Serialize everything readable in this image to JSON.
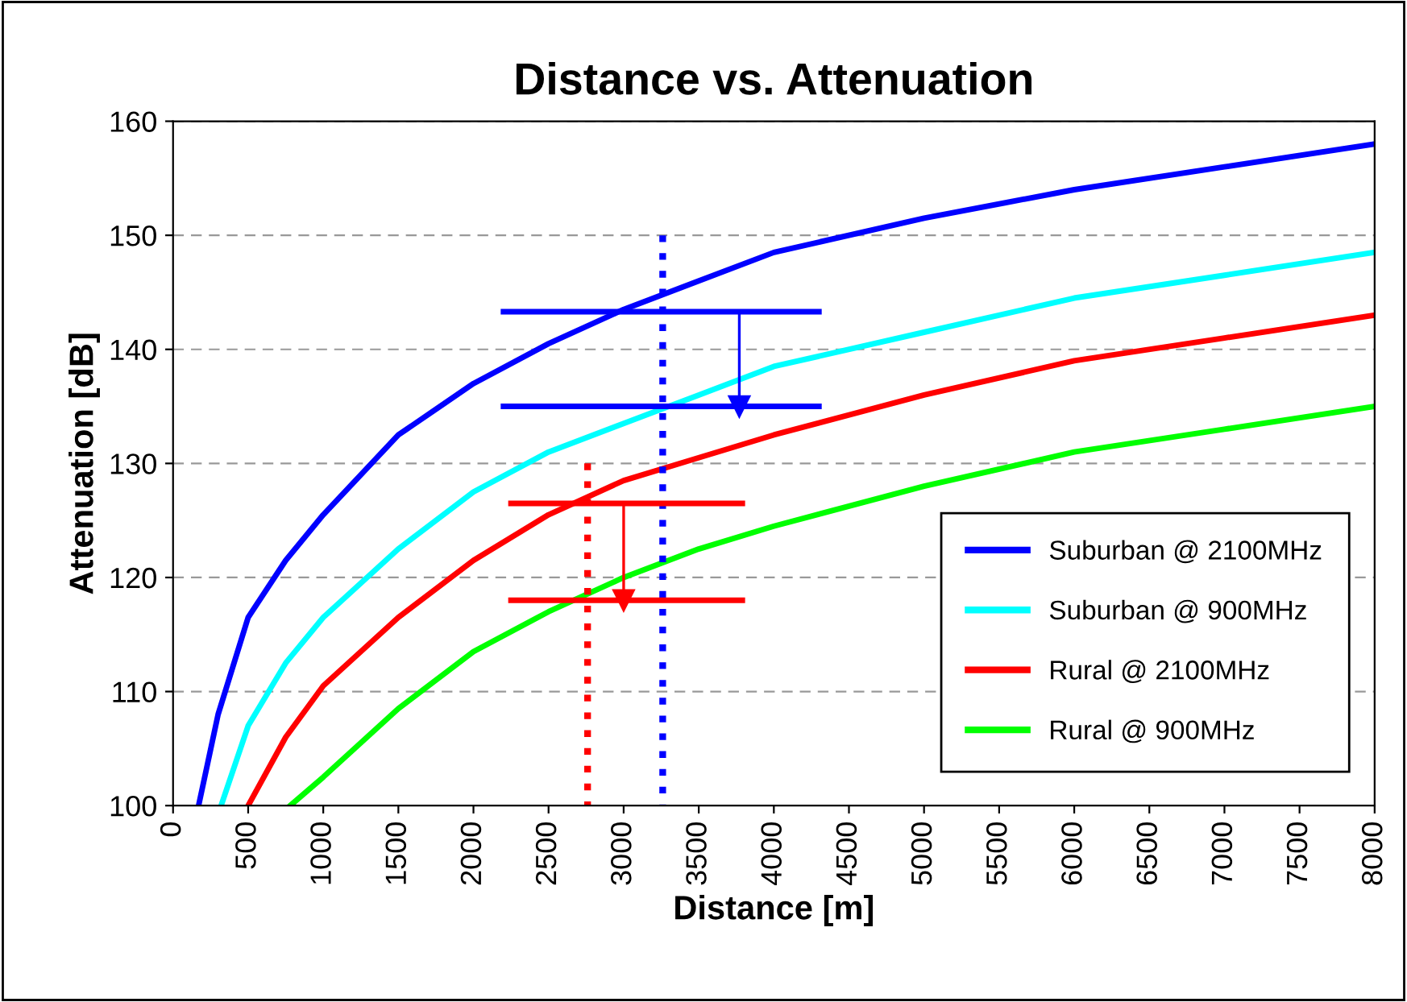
{
  "chart_data": {
    "type": "line",
    "title": "Distance vs. Attenuation",
    "xlabel": "Distance [m]",
    "ylabel": "Attenuation [dB]",
    "xlim": [
      0,
      8000
    ],
    "ylim": [
      100,
      160
    ],
    "xticks": [
      0,
      500,
      1000,
      1500,
      2000,
      2500,
      3000,
      3500,
      4000,
      4500,
      5000,
      5500,
      6000,
      6500,
      7000,
      7500,
      8000
    ],
    "yticks": [
      100,
      110,
      120,
      130,
      140,
      150,
      160
    ],
    "grid": "y",
    "legend": "lower right",
    "line_style": "solid",
    "marker": "none",
    "series": [
      {
        "name": "Suburban @ 2100MHz",
        "color": "#0000ff",
        "x": [
          170,
          300,
          500,
          750,
          1000,
          1500,
          2000,
          2500,
          3000,
          3500,
          4000,
          5000,
          6000,
          7000,
          8000
        ],
        "values": [
          100,
          108,
          116.5,
          121.5,
          125.5,
          132.5,
          137,
          140.5,
          143.5,
          146,
          148.5,
          151.5,
          154,
          156,
          158
        ]
      },
      {
        "name": "Suburban @ 900MHz",
        "color": "#00ffff",
        "x": [
          320,
          500,
          750,
          1000,
          1500,
          2000,
          2500,
          3000,
          3500,
          4000,
          5000,
          6000,
          7000,
          8000
        ],
        "values": [
          100,
          107,
          112.5,
          116.5,
          122.5,
          127.5,
          131,
          133.5,
          136,
          138.5,
          141.5,
          144.5,
          146.5,
          148.5
        ]
      },
      {
        "name": "Rural @ 2100MHz",
        "color": "#ff0000",
        "x": [
          500,
          750,
          1000,
          1500,
          2000,
          2500,
          3000,
          3500,
          4000,
          5000,
          6000,
          7000,
          8000
        ],
        "values": [
          100,
          106,
          110.5,
          116.5,
          121.5,
          125.5,
          128.5,
          130.5,
          132.5,
          136,
          139,
          141,
          143
        ]
      },
      {
        "name": "Rural @ 900MHz",
        "color": "#00ff00",
        "x": [
          780,
          1000,
          1500,
          2000,
          2500,
          3000,
          3500,
          4000,
          5000,
          6000,
          7000,
          8000
        ],
        "values": [
          100,
          102.5,
          108.5,
          113.5,
          117,
          120,
          122.5,
          124.5,
          128,
          131,
          133,
          135
        ]
      },
      {
        "color": "#ff0000",
        "line_style": "dotted",
        "x": [
          2760,
          2760
        ],
        "values": [
          130,
          100
        ]
      },
      {
        "color": "#0000ff",
        "line_style": "dotted",
        "x": [
          3260,
          3260
        ],
        "values": [
          150,
          100
        ]
      },
      {
        "color": "#0000ff",
        "x": [
          2200,
          4300
        ],
        "values": [
          143.3,
          143.3
        ]
      },
      {
        "color": "#0000ff",
        "x": [
          2200,
          4300
        ],
        "values": [
          135,
          135
        ]
      },
      {
        "color": "#0000ff",
        "marker": "triangle",
        "x": [
          3770,
          3770
        ],
        "values": [
          143.3,
          135
        ]
      },
      {
        "color": "#ff0000",
        "x": [
          2250,
          3790
        ],
        "values": [
          126.5,
          126.5
        ]
      },
      {
        "color": "#ff0000",
        "x": [
          2250,
          3790
        ],
        "values": [
          118,
          118
        ]
      },
      {
        "color": "#ff0000",
        "marker": "triangle",
        "x": [
          3000,
          3000
        ],
        "values": [
          126.5,
          118
        ]
      }
    ]
  }
}
